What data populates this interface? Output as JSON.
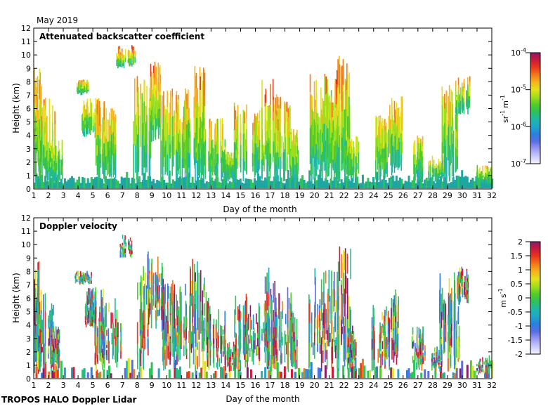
{
  "header": {
    "period": "May 2019",
    "footer": "TROPOS HALO Doppler Lidar"
  },
  "palette": [
    "#f4f4ff",
    "#c9c9ff",
    "#9a9af2",
    "#5a6ee0",
    "#2a7fe0",
    "#1fa6c8",
    "#1fb8a8",
    "#2ec25a",
    "#52cc2a",
    "#a0dd1a",
    "#e2e21a",
    "#f5b41a",
    "#f27a1a",
    "#ea3a1a",
    "#cc1a3a",
    "#8a1a6a"
  ],
  "chart_data": [
    {
      "type": "heatmap",
      "title": "Attenuated backscatter coefficient",
      "xlabel": "Day of the month",
      "ylabel": "Height (km)",
      "xlim": [
        1,
        32
      ],
      "ylim": [
        0,
        12
      ],
      "xticks": [
        "1",
        "2",
        "3",
        "4",
        "5",
        "6",
        "7",
        "8",
        "9",
        "10",
        "11",
        "12",
        "13",
        "14",
        "15",
        "16",
        "17",
        "18",
        "19",
        "20",
        "21",
        "22",
        "23",
        "24",
        "25",
        "26",
        "27",
        "28",
        "29",
        "30",
        "31",
        "32"
      ],
      "yticks": [
        "0",
        "1",
        "2",
        "3",
        "4",
        "5",
        "6",
        "7",
        "8",
        "9",
        "10",
        "11",
        "12"
      ],
      "colorbar": {
        "scale": "log",
        "units_label": "sr-1 m-1",
        "units": {
          "a": "sr",
          "a_exp": "-1",
          "b": "m",
          "b_exp": "-1"
        },
        "min": "1e-7",
        "max": "1e-4",
        "ticks": [
          {
            "base": "10",
            "exp": "-4",
            "frac": 1.0
          },
          {
            "base": "10",
            "exp": "-5",
            "frac": 0.6667
          },
          {
            "base": "10",
            "exp": "-6",
            "frac": 0.3333
          },
          {
            "base": "10",
            "exp": "-7",
            "frac": 0.0
          }
        ]
      },
      "cloud_events": [
        {
          "day": 1.2,
          "top_km": 9.0,
          "base_km": 0.2,
          "peak": 0.75
        },
        {
          "day": 1.9,
          "top_km": 6.8,
          "base_km": 0.3,
          "peak": 0.7
        },
        {
          "day": 2.4,
          "top_km": 4.0,
          "base_km": 0.5,
          "peak": 0.55
        },
        {
          "day": 4.3,
          "top_km": 8.2,
          "base_km": 7.0,
          "peak": 0.65
        },
        {
          "day": 4.8,
          "top_km": 7.0,
          "base_km": 3.8,
          "peak": 0.7
        },
        {
          "day": 5.5,
          "top_km": 7.0,
          "base_km": 0.5,
          "peak": 0.8
        },
        {
          "day": 6.2,
          "top_km": 6.2,
          "base_km": 0.8,
          "peak": 0.75
        },
        {
          "day": 7.2,
          "top_km": 10.8,
          "base_km": 9.0,
          "peak": 0.9
        },
        {
          "day": 8.3,
          "top_km": 8.5,
          "base_km": 0.5,
          "peak": 0.65
        },
        {
          "day": 9.2,
          "top_km": 9.5,
          "base_km": 3.5,
          "peak": 0.8
        },
        {
          "day": 10.1,
          "top_km": 7.5,
          "base_km": 0.5,
          "peak": 0.7
        },
        {
          "day": 11.1,
          "top_km": 7.6,
          "base_km": 0.5,
          "peak": 0.7
        },
        {
          "day": 12.2,
          "top_km": 9.2,
          "base_km": 0.5,
          "peak": 0.75
        },
        {
          "day": 13.3,
          "top_km": 5.3,
          "base_km": 0.5,
          "peak": 0.6
        },
        {
          "day": 14.3,
          "top_km": 2.8,
          "base_km": 0.5,
          "peak": 0.5
        },
        {
          "day": 15.0,
          "top_km": 6.6,
          "base_km": 0.5,
          "peak": 0.7
        },
        {
          "day": 16.2,
          "top_km": 6.0,
          "base_km": 0.8,
          "peak": 0.75
        },
        {
          "day": 17.0,
          "top_km": 8.3,
          "base_km": 0.5,
          "peak": 0.8
        },
        {
          "day": 17.8,
          "top_km": 7.0,
          "base_km": 0.5,
          "peak": 0.75
        },
        {
          "day": 18.6,
          "top_km": 5.0,
          "base_km": 0.5,
          "peak": 0.65
        },
        {
          "day": 20.2,
          "top_km": 8.6,
          "base_km": 0.5,
          "peak": 0.7
        },
        {
          "day": 21.1,
          "top_km": 9.0,
          "base_km": 0.5,
          "peak": 0.8
        },
        {
          "day": 21.9,
          "top_km": 10.0,
          "base_km": 0.5,
          "peak": 0.85
        },
        {
          "day": 22.5,
          "top_km": 4.0,
          "base_km": 0.5,
          "peak": 0.5
        },
        {
          "day": 24.5,
          "top_km": 5.5,
          "base_km": 0.5,
          "peak": 0.6
        },
        {
          "day": 25.4,
          "top_km": 7.0,
          "base_km": 1.0,
          "peak": 0.7
        },
        {
          "day": 27.0,
          "top_km": 4.0,
          "base_km": 0.5,
          "peak": 0.65
        },
        {
          "day": 28.2,
          "top_km": 2.5,
          "base_km": 0.5,
          "peak": 0.6
        },
        {
          "day": 29.1,
          "top_km": 8.3,
          "base_km": 0.5,
          "peak": 0.7
        },
        {
          "day": 30.0,
          "top_km": 8.5,
          "base_km": 5.5,
          "peak": 0.75
        },
        {
          "day": 31.5,
          "top_km": 1.8,
          "base_km": 0.3,
          "peak": 0.55
        }
      ]
    },
    {
      "type": "heatmap",
      "title": "Doppler velocity",
      "xlabel": "Day of the month",
      "ylabel": "Height (km)",
      "xlim": [
        1,
        32
      ],
      "ylim": [
        0,
        12
      ],
      "xticks": [
        "1",
        "2",
        "3",
        "4",
        "5",
        "6",
        "7",
        "8",
        "9",
        "10",
        "11",
        "12",
        "13",
        "14",
        "15",
        "16",
        "17",
        "18",
        "19",
        "20",
        "21",
        "22",
        "23",
        "24",
        "25",
        "26",
        "27",
        "28",
        "29",
        "30",
        "31",
        "32"
      ],
      "yticks": [
        "0",
        "1",
        "2",
        "3",
        "4",
        "5",
        "6",
        "7",
        "8",
        "9",
        "10",
        "11",
        "12"
      ],
      "colorbar": {
        "scale": "linear",
        "units_label": "m s-1",
        "units": {
          "a": "m",
          "b": "s",
          "b_exp": "-1"
        },
        "min": -2,
        "max": 2,
        "ticks": [
          "2",
          "1.5",
          "1",
          "0.5",
          "0",
          "-0.5",
          "-1",
          "-1.5",
          "-2"
        ]
      }
    }
  ]
}
